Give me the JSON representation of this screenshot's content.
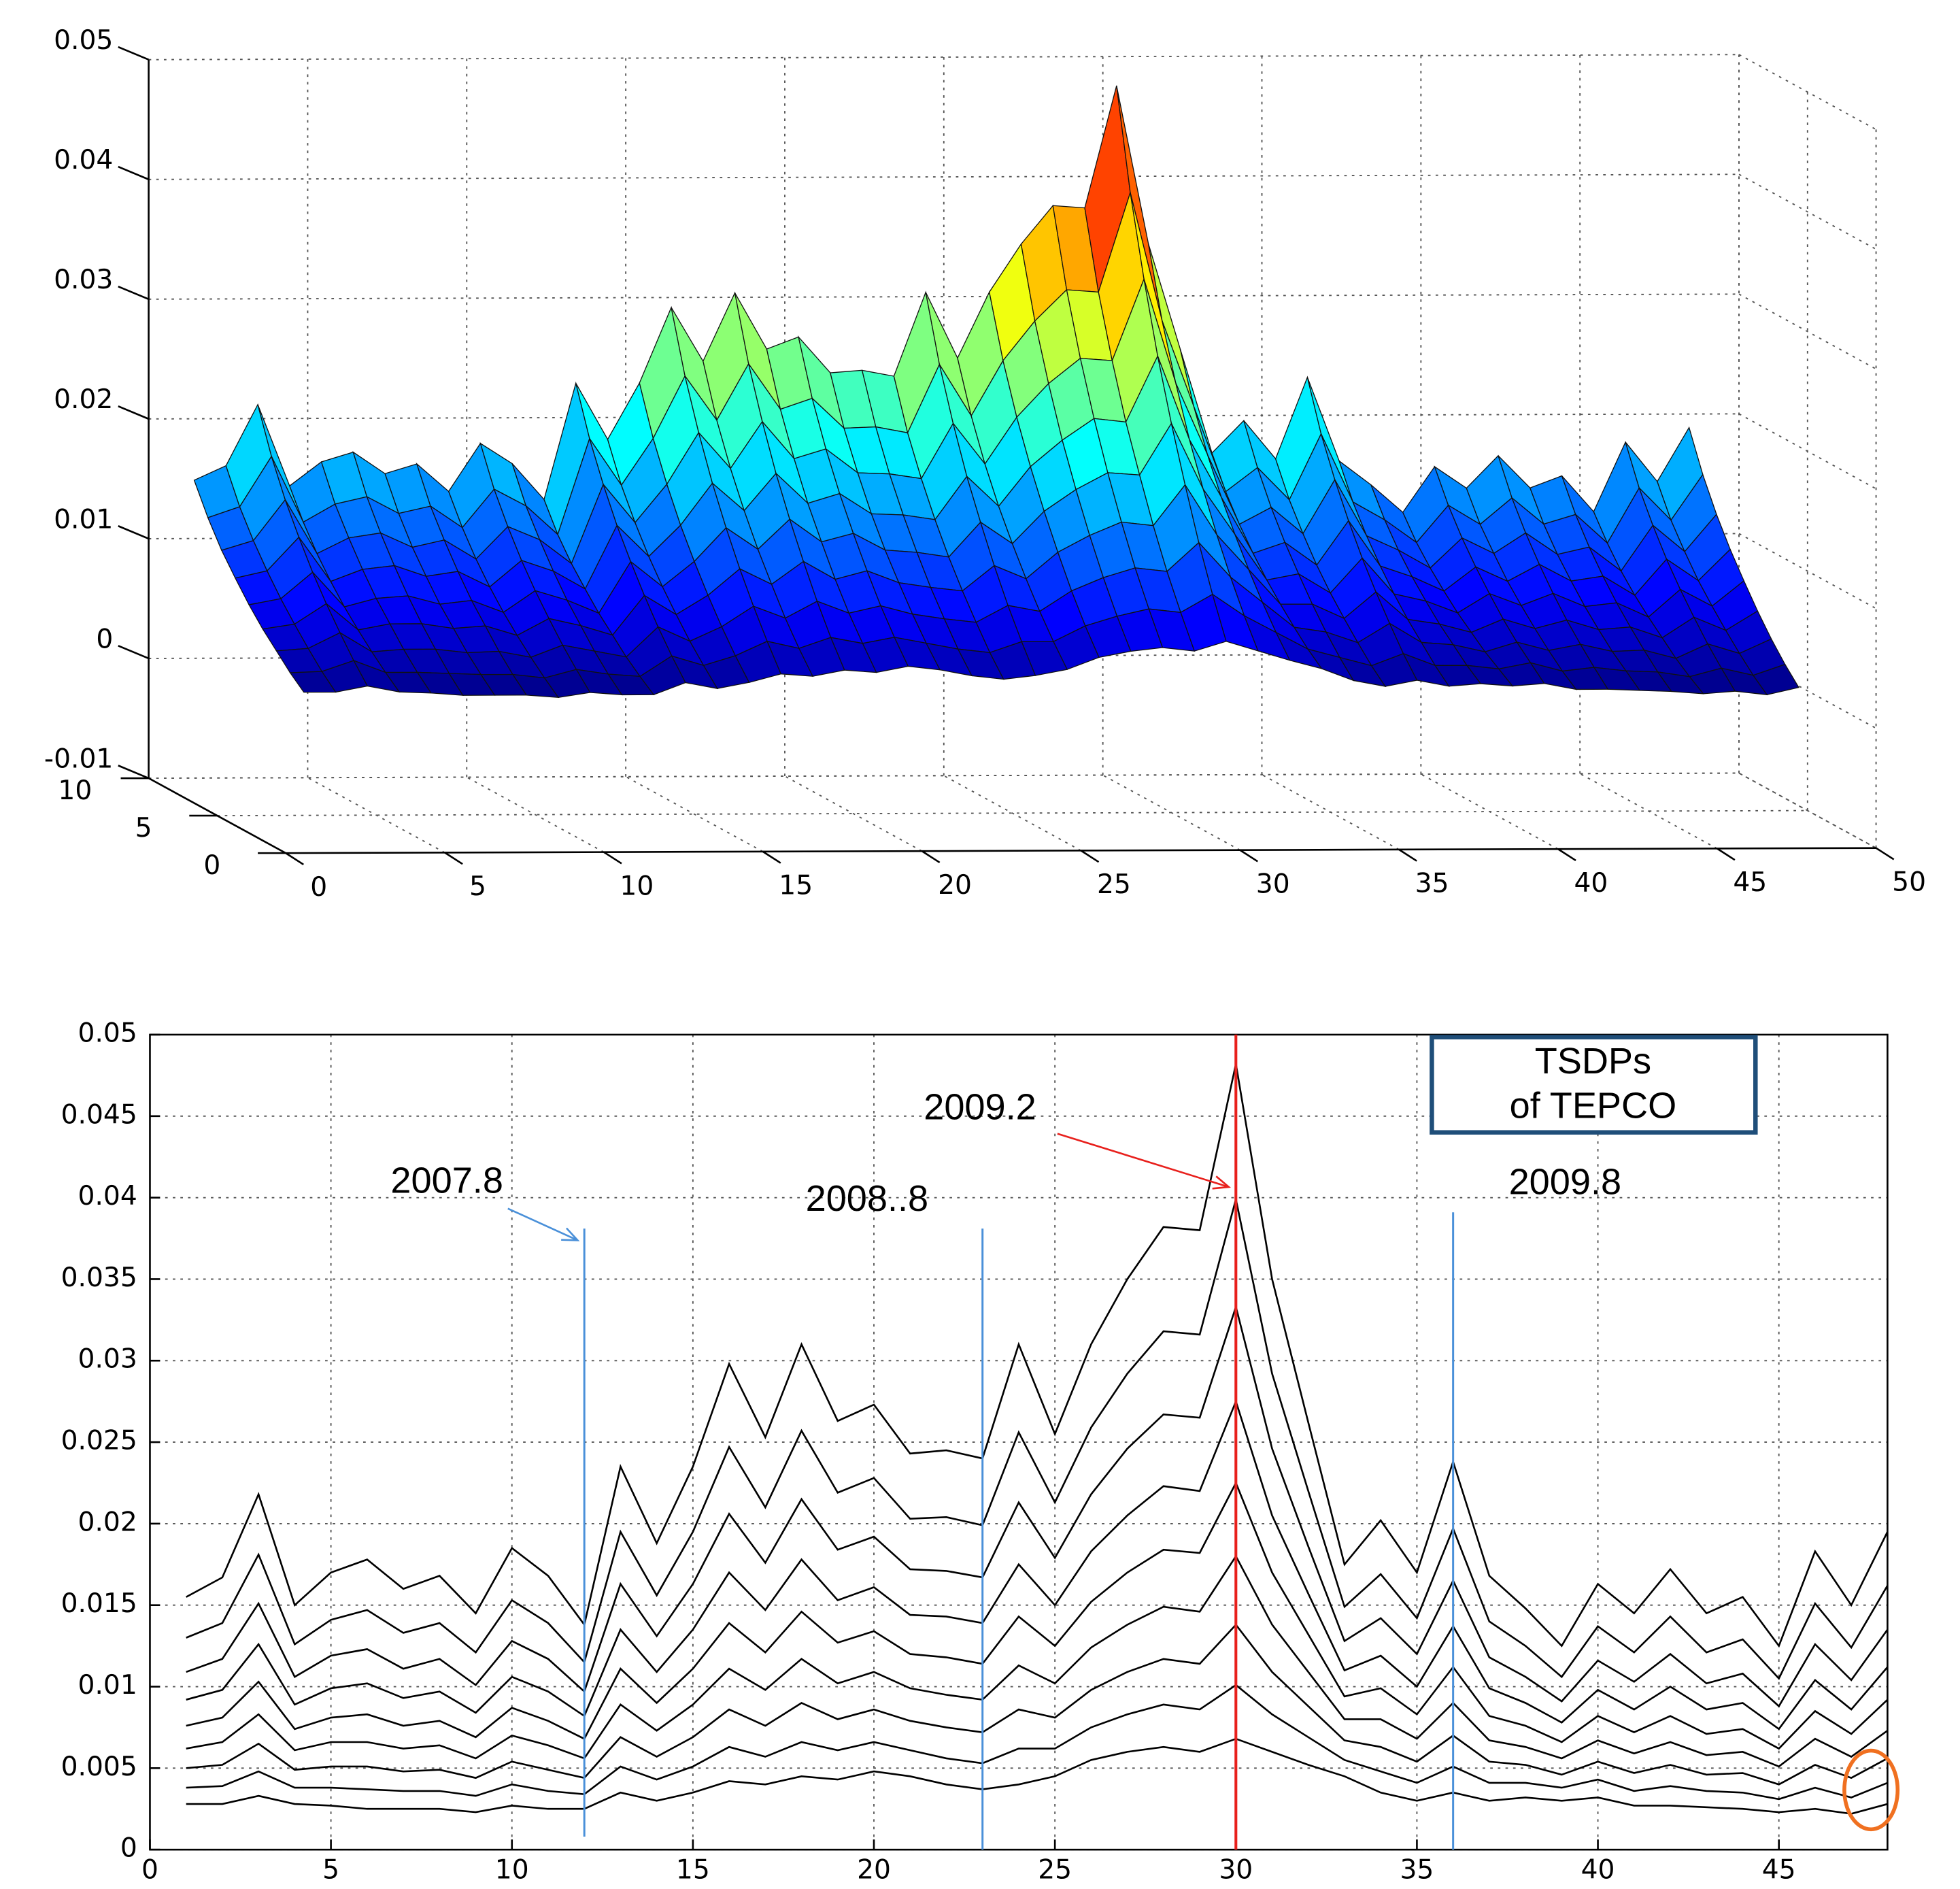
{
  "chart_data": [
    {
      "type": "surface",
      "xlim": [
        0,
        50
      ],
      "xticks": [
        0,
        5,
        10,
        15,
        20,
        25,
        30,
        35,
        40,
        45,
        50
      ],
      "ylim": [
        0,
        10
      ],
      "yticks": [
        0,
        5,
        10
      ],
      "zlim": [
        -0.01,
        0.05
      ],
      "zticks": [
        -0.01,
        0,
        0.01,
        0.02,
        0.03,
        0.04,
        0.05
      ],
      "colormap": "jet",
      "grid": true
    },
    {
      "type": "line",
      "xlim": [
        0,
        48
      ],
      "xticks": [
        0,
        5,
        10,
        15,
        20,
        25,
        30,
        35,
        40,
        45
      ],
      "ylim": [
        0,
        0.05
      ],
      "yticks": [
        0,
        0.005,
        0.01,
        0.015,
        0.02,
        0.025,
        0.03,
        0.035,
        0.04,
        0.045,
        0.05
      ],
      "grid": true,
      "x": [
        1,
        2,
        3,
        4,
        5,
        6,
        7,
        8,
        9,
        10,
        11,
        12,
        13,
        14,
        15,
        16,
        17,
        18,
        19,
        20,
        21,
        22,
        23,
        24,
        25,
        26,
        27,
        28,
        29,
        30,
        31,
        32,
        33,
        34,
        35,
        36,
        37,
        38,
        39,
        40,
        41,
        42,
        43,
        44,
        45,
        46,
        47,
        48
      ],
      "series": [
        {
          "color": "#000000",
          "values": [
            0.0155,
            0.0167,
            0.0218,
            0.015,
            0.017,
            0.0178,
            0.016,
            0.0168,
            0.0145,
            0.0185,
            0.0168,
            0.0138,
            0.0235,
            0.0188,
            0.0235,
            0.0298,
            0.0253,
            0.031,
            0.0263,
            0.0273,
            0.0243,
            0.0245,
            0.024,
            0.031,
            0.0255,
            0.031,
            0.035,
            0.0382,
            0.038,
            0.0482,
            0.035,
            0.0262,
            0.0175,
            0.0202,
            0.017,
            0.0238,
            0.0168,
            0.0148,
            0.0125,
            0.0163,
            0.0145,
            0.0172,
            0.0145,
            0.0155,
            0.0125,
            0.0183,
            0.015,
            0.0195
          ]
        },
        {
          "color": "#000000",
          "values": [
            0.013,
            0.0139,
            0.0181,
            0.0126,
            0.0141,
            0.0147,
            0.0133,
            0.0139,
            0.0121,
            0.0153,
            0.0139,
            0.0115,
            0.0195,
            0.0156,
            0.0195,
            0.0247,
            0.021,
            0.0257,
            0.0219,
            0.0228,
            0.0203,
            0.0204,
            0.0199,
            0.0256,
            0.0213,
            0.0259,
            0.0292,
            0.0318,
            0.0316,
            0.0399,
            0.0292,
            0.022,
            0.0149,
            0.0169,
            0.0142,
            0.0197,
            0.014,
            0.0125,
            0.0106,
            0.0137,
            0.0121,
            0.0143,
            0.0121,
            0.0129,
            0.0105,
            0.0151,
            0.0124,
            0.0162
          ]
        },
        {
          "color": "#000000",
          "values": [
            0.0109,
            0.0117,
            0.0151,
            0.0106,
            0.0119,
            0.0123,
            0.0111,
            0.0117,
            0.0101,
            0.0128,
            0.0117,
            0.0097,
            0.0163,
            0.0131,
            0.0163,
            0.0206,
            0.0176,
            0.0215,
            0.0184,
            0.0192,
            0.0172,
            0.0171,
            0.0167,
            0.0213,
            0.0179,
            0.0218,
            0.0246,
            0.0267,
            0.0265,
            0.0333,
            0.0246,
            0.0186,
            0.0128,
            0.0142,
            0.012,
            0.0165,
            0.0118,
            0.0106,
            0.0091,
            0.0116,
            0.0103,
            0.012,
            0.0102,
            0.0108,
            0.0088,
            0.0126,
            0.0104,
            0.0135
          ]
        },
        {
          "color": "#000000",
          "values": [
            0.0092,
            0.0098,
            0.0126,
            0.0089,
            0.0099,
            0.0102,
            0.0093,
            0.0097,
            0.0084,
            0.0106,
            0.0097,
            0.0082,
            0.0135,
            0.0109,
            0.0135,
            0.017,
            0.0147,
            0.0178,
            0.0153,
            0.0161,
            0.0144,
            0.0143,
            0.0139,
            0.0175,
            0.015,
            0.0183,
            0.0205,
            0.0223,
            0.022,
            0.0275,
            0.0205,
            0.0157,
            0.011,
            0.0119,
            0.01,
            0.0137,
            0.0099,
            0.009,
            0.0078,
            0.0098,
            0.0086,
            0.01,
            0.0086,
            0.009,
            0.0074,
            0.0104,
            0.0086,
            0.0112
          ]
        },
        {
          "color": "#000000",
          "values": [
            0.0076,
            0.0081,
            0.0103,
            0.0074,
            0.0081,
            0.0083,
            0.0076,
            0.0079,
            0.0069,
            0.0087,
            0.0079,
            0.0068,
            0.0111,
            0.009,
            0.0111,
            0.0139,
            0.0121,
            0.0146,
            0.0127,
            0.0134,
            0.012,
            0.0118,
            0.0114,
            0.0143,
            0.0125,
            0.0152,
            0.017,
            0.0184,
            0.0182,
            0.0225,
            0.017,
            0.0132,
            0.0094,
            0.0099,
            0.0083,
            0.0112,
            0.0082,
            0.0076,
            0.0066,
            0.0082,
            0.0072,
            0.0082,
            0.0071,
            0.0074,
            0.0062,
            0.0085,
            0.0071,
            0.0092
          ]
        },
        {
          "color": "#000000",
          "values": [
            0.0062,
            0.0066,
            0.0083,
            0.0061,
            0.0066,
            0.0066,
            0.0062,
            0.0064,
            0.0056,
            0.007,
            0.0064,
            0.0056,
            0.0089,
            0.0073,
            0.0089,
            0.0111,
            0.0098,
            0.0117,
            0.0102,
            0.0109,
            0.0099,
            0.0095,
            0.0092,
            0.0113,
            0.0102,
            0.0124,
            0.0138,
            0.0149,
            0.0146,
            0.018,
            0.0138,
            0.0109,
            0.008,
            0.008,
            0.0068,
            0.009,
            0.0067,
            0.0063,
            0.0056,
            0.0067,
            0.0059,
            0.0066,
            0.0058,
            0.006,
            0.0051,
            0.0068,
            0.0057,
            0.0073
          ]
        },
        {
          "color": "#000000",
          "values": [
            0.005,
            0.0052,
            0.0065,
            0.0049,
            0.0051,
            0.0051,
            0.0048,
            0.0049,
            0.0044,
            0.0054,
            0.0049,
            0.0044,
            0.0069,
            0.0057,
            0.0069,
            0.0086,
            0.0076,
            0.009,
            0.008,
            0.0086,
            0.0079,
            0.0075,
            0.0072,
            0.0086,
            0.0081,
            0.0098,
            0.0109,
            0.0117,
            0.0114,
            0.0138,
            0.0109,
            0.0088,
            0.0067,
            0.0063,
            0.0054,
            0.007,
            0.0054,
            0.0052,
            0.0046,
            0.0054,
            0.0047,
            0.0052,
            0.0046,
            0.0047,
            0.004,
            0.0052,
            0.0044,
            0.0056
          ]
        },
        {
          "color": "#000000",
          "values": [
            0.0038,
            0.0039,
            0.0048,
            0.0038,
            0.0038,
            0.0037,
            0.0036,
            0.0036,
            0.0033,
            0.004,
            0.0036,
            0.0034,
            0.0051,
            0.0043,
            0.0051,
            0.0063,
            0.0057,
            0.0066,
            0.0061,
            0.0066,
            0.0061,
            0.0056,
            0.0053,
            0.0062,
            0.0062,
            0.0075,
            0.0083,
            0.0089,
            0.0086,
            0.0101,
            0.0083,
            0.0069,
            0.0055,
            0.0048,
            0.0041,
            0.0051,
            0.0041,
            0.0041,
            0.0038,
            0.0043,
            0.0036,
            0.0039,
            0.0036,
            0.0035,
            0.0031,
            0.0038,
            0.0032,
            0.0041
          ]
        },
        {
          "color": "#000000",
          "values": [
            0.0028,
            0.0028,
            0.0033,
            0.0028,
            0.0027,
            0.0025,
            0.0025,
            0.0025,
            0.0023,
            0.0027,
            0.0025,
            0.0025,
            0.0035,
            0.003,
            0.0035,
            0.0042,
            0.004,
            0.0045,
            0.0043,
            0.0048,
            0.0045,
            0.004,
            0.0037,
            0.004,
            0.0045,
            0.0055,
            0.006,
            0.0063,
            0.006,
            0.0068,
            0.006,
            0.0052,
            0.0045,
            0.0035,
            0.003,
            0.0035,
            0.003,
            0.0032,
            0.003,
            0.0032,
            0.0027,
            0.0027,
            0.0026,
            0.0025,
            0.0023,
            0.0025,
            0.0022,
            0.0028
          ]
        }
      ],
      "vlines": [
        {
          "x": 12,
          "y": [
            0.0008,
            0.0381
          ],
          "color": "#4a90d9"
        },
        {
          "x": 23,
          "y": [
            0,
            0.0381
          ],
          "color": "#4a90d9"
        },
        {
          "x": 30,
          "y": [
            0,
            0.05
          ],
          "color": "#e8201c"
        },
        {
          "x": 36,
          "y": [
            0,
            0.0391
          ],
          "color": "#4a90d9"
        }
      ],
      "annotations": [
        "2007.8",
        "2008..8",
        "2009.2",
        "2009.8"
      ],
      "text_box": [
        "TSDPs",
        "of TEPCO"
      ]
    }
  ]
}
